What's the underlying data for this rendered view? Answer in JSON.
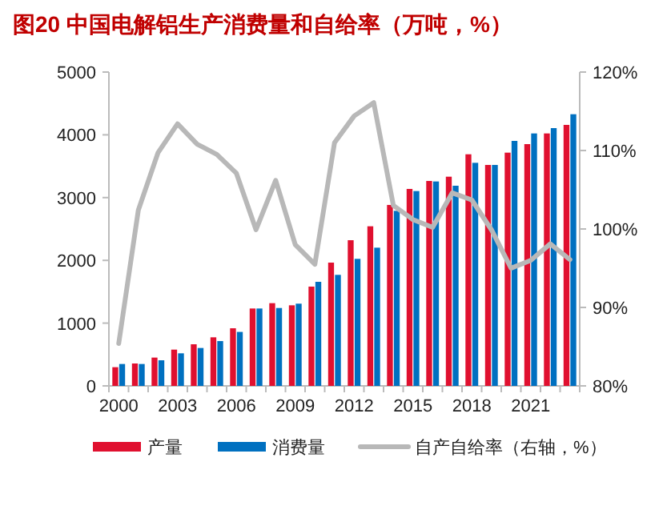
{
  "chart_data": {
    "type": "bar",
    "title": "图20  中国电解铝生产消费量和自给率（万吨，%）",
    "categories": [
      "2000",
      null,
      null,
      "2003",
      null,
      null,
      "2006",
      null,
      null,
      "2009",
      null,
      null,
      "2012",
      null,
      null,
      "2015",
      null,
      null,
      "2018",
      null,
      null,
      "2021",
      null,
      null
    ],
    "series": [
      {
        "name": "产量",
        "color": "#e0102f",
        "values": [
          298,
          357,
          451,
          578,
          663,
          774,
          918,
          1233,
          1318,
          1284,
          1582,
          1964,
          2321,
          2543,
          2883,
          3138,
          3265,
          3333,
          3690,
          3520,
          3716,
          3852,
          4022,
          4158
        ]
      },
      {
        "name": "消费量",
        "color": "#0070c0",
        "values": [
          349,
          349,
          408,
          519,
          604,
          714,
          860,
          1233,
          1241,
          1310,
          1658,
          1769,
          2024,
          2202,
          2789,
          3104,
          3257,
          3189,
          3554,
          3520,
          3903,
          4022,
          4107,
          4328
        ]
      },
      {
        "name": "自产自给率（右轴，%）",
        "type": "line",
        "axis": "y2",
        "color": "#b8b8b8",
        "values": [
          85.4,
          102.4,
          109.7,
          113.4,
          110.8,
          109.5,
          107.1,
          99.9,
          106.2,
          98.0,
          95.5,
          111.0,
          114.4,
          116.1,
          103.0,
          101.2,
          100.2,
          104.6,
          103.7,
          99.9,
          95.0,
          96.0,
          98.1,
          96.1
        ]
      }
    ],
    "ylim": [
      0,
      5000
    ],
    "yticks": [
      0,
      1000,
      2000,
      3000,
      4000,
      5000
    ],
    "y2lim": [
      80,
      120
    ],
    "y2ticks": [
      {
        "value": 80,
        "label": "80%"
      },
      {
        "value": 90,
        "label": "90%"
      },
      {
        "value": 100,
        "label": "100%"
      },
      {
        "value": 110,
        "label": "110%"
      },
      {
        "value": 120,
        "label": "120%"
      }
    ],
    "grid": false,
    "legend": "bottom"
  }
}
